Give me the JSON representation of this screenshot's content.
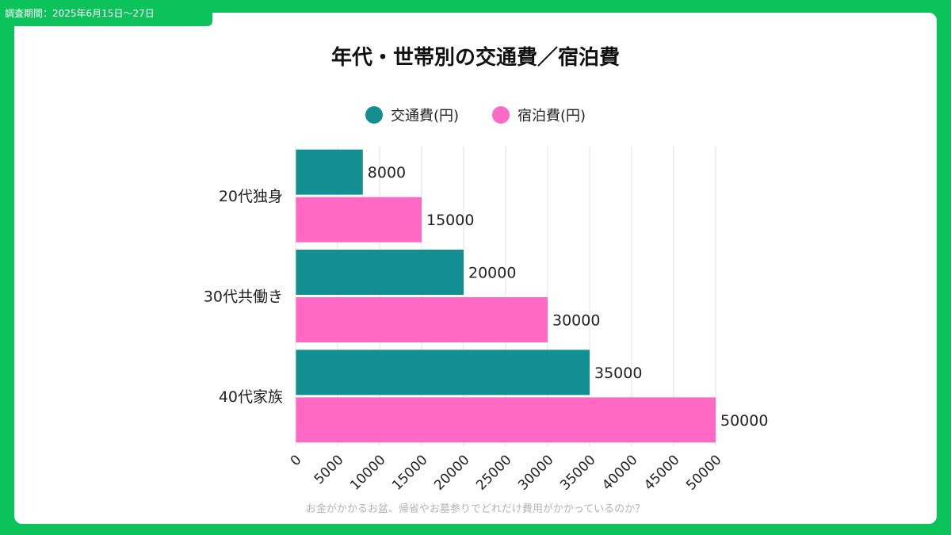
{
  "header": {
    "survey_period": "調査期間：2025年6月15日～27日"
  },
  "footer": {
    "caption": "お金がかかるお盆、帰省やお墓参りでどれだけ費用がかかっているのか？"
  },
  "chart_data": {
    "type": "bar",
    "orientation": "horizontal",
    "title": "年代・世帯別の交通費／宿泊費",
    "categories": [
      "20代独身",
      "30代共働き",
      "40代家族"
    ],
    "series": [
      {
        "name": "交通費(円)",
        "color": "#148f91",
        "values": [
          8000,
          20000,
          35000
        ]
      },
      {
        "name": "宿泊費(円)",
        "color": "#ff69c4",
        "values": [
          15000,
          30000,
          50000
        ]
      }
    ],
    "xlim": [
      0,
      50000
    ],
    "x_ticks": [
      "0",
      "5000",
      "10000",
      "15000",
      "20000",
      "25000",
      "30000",
      "35000",
      "40000",
      "45000",
      "50000"
    ],
    "grid": true,
    "legend_position": "top",
    "data_labels": true
  }
}
